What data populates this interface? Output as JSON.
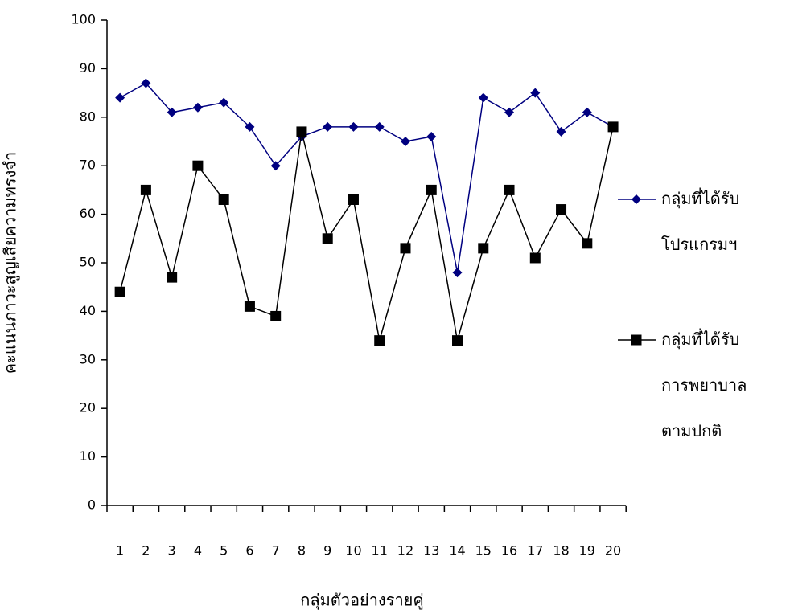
{
  "chart_data": {
    "type": "line",
    "x_label": "กลุ่มตัวอย่างรายคู่",
    "y_label": "คะแนนภาวะสูญเสียความทรงจำ",
    "categories": [
      1,
      2,
      3,
      4,
      5,
      6,
      7,
      8,
      9,
      10,
      11,
      12,
      13,
      14,
      15,
      16,
      17,
      18,
      19,
      20
    ],
    "series": [
      {
        "name": "กลุ่มที่ได้รับ\nโปรแกรมฯ",
        "color": "#000080",
        "marker": "diamond",
        "values": [
          84,
          87,
          81,
          82,
          83,
          78,
          70,
          76,
          78,
          78,
          78,
          75,
          76,
          48,
          84,
          81,
          85,
          77,
          81,
          78
        ]
      },
      {
        "name": "กลุ่มที่ได้รับ\nการพยาบาล\nตามปกติ",
        "color": "#000000",
        "marker": "square",
        "values": [
          44,
          65,
          47,
          70,
          63,
          41,
          39,
          77,
          55,
          63,
          34,
          53,
          65,
          34,
          53,
          65,
          51,
          61,
          54,
          78
        ]
      }
    ],
    "ylim": [
      0,
      100
    ],
    "yticks": [
      0,
      10,
      20,
      30,
      40,
      50,
      60,
      70,
      80,
      90,
      100
    ],
    "grid": false
  }
}
